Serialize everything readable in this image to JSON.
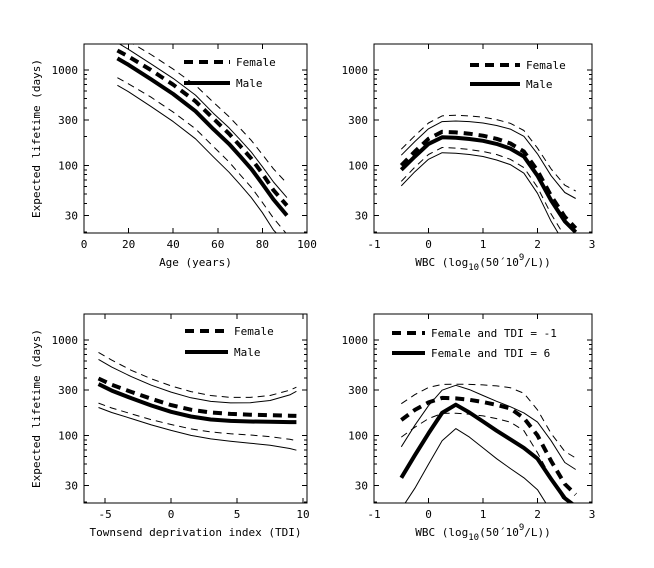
{
  "figure": {
    "background": "#ffffff",
    "line_color": "#000000",
    "ylabel": "Expected lifetime (days)",
    "grid": false,
    "legend_position": "top-inside, no frame"
  },
  "chart_data": [
    {
      "id": "age",
      "type": "line",
      "title": "",
      "xlabel": "Age (years)",
      "xlabel_parts": [
        {
          "t": "Age (years)"
        }
      ],
      "ylabel": "Expected lifetime (days)",
      "xlim": [
        0,
        100
      ],
      "xticks": [
        "0",
        "20",
        "40",
        "60",
        "80",
        "100"
      ],
      "xtick_values": [
        0,
        20,
        40,
        60,
        80,
        100
      ],
      "yscale": "log",
      "ylim": [
        19.6,
        1870
      ],
      "yticks": [
        "30",
        "100",
        "300",
        "1000"
      ],
      "ytick_values": [
        30,
        100,
        300,
        1000
      ],
      "legend": [
        {
          "label": "Female",
          "style": "thick-dashed"
        },
        {
          "label": "Male",
          "style": "thick-solid"
        }
      ],
      "x": [
        15,
        20,
        30,
        40,
        50,
        58,
        65,
        70,
        75,
        80,
        85,
        91
      ],
      "series": [
        {
          "name": "female",
          "style": "thick-dashed",
          "values": [
            1600,
            1380,
            1000,
            700,
            470,
            310,
            215,
            160,
            118,
            82,
            55,
            38
          ]
        },
        {
          "name": "male",
          "style": "thick-solid",
          "values": [
            1320,
            1130,
            800,
            560,
            370,
            240,
            168,
            125,
            92,
            64,
            44,
            30
          ]
        },
        {
          "name": "female-upper-ci",
          "style": "thin-dashed",
          "values": [
            2320,
            2000,
            1450,
            1020,
            690,
            460,
            325,
            245,
            183,
            130,
            92,
            65
          ]
        },
        {
          "name": "male-upper-ci",
          "style": "thin-solid",
          "values": [
            1930,
            1640,
            1160,
            815,
            545,
            352,
            248,
            186,
            138,
            97,
            67,
            46
          ]
        },
        {
          "name": "female-lower-ci",
          "style": "thin-dashed",
          "values": [
            830,
            715,
            520,
            362,
            242,
            158,
            109,
            80,
            59,
            41,
            28,
            19
          ]
        },
        {
          "name": "male-lower-ci",
          "style": "thin-solid",
          "values": [
            690,
            590,
            415,
            288,
            190,
            123,
            85,
            63,
            46,
            32,
            21,
            15
          ]
        }
      ]
    },
    {
      "id": "wbc-by-sex",
      "type": "line",
      "title": "",
      "xlabel": "WBC (log10(50´10^9/L))",
      "xlabel_parts": [
        {
          "t": "WBC (log"
        },
        {
          "t": "10",
          "s": "sub"
        },
        {
          "t": "(50´10"
        },
        {
          "t": "9",
          "s": "sup"
        },
        {
          "t": "/L))"
        }
      ],
      "ylabel": null,
      "xlim": [
        -1,
        3
      ],
      "xticks": [
        "-1",
        "0",
        "1",
        "2",
        "3"
      ],
      "xtick_values": [
        -1,
        0,
        1,
        2,
        3
      ],
      "yscale": "log",
      "ylim": [
        19.6,
        1870
      ],
      "yticks": [
        "30",
        "100",
        "300",
        "1000"
      ],
      "ytick_values": [
        30,
        100,
        300,
        1000
      ],
      "legend": [
        {
          "label": "Female",
          "style": "thick-dashed"
        },
        {
          "label": "Male",
          "style": "thick-solid"
        }
      ],
      "x": [
        -0.5,
        -0.25,
        0,
        0.25,
        0.5,
        0.75,
        1,
        1.25,
        1.5,
        1.75,
        2,
        2.25,
        2.5,
        2.7
      ],
      "series": [
        {
          "name": "female",
          "style": "thick-dashed",
          "values": [
            100,
            140,
            190,
            225,
            222,
            215,
            205,
            190,
            170,
            140,
            88,
            48,
            29,
            22
          ]
        },
        {
          "name": "male",
          "style": "thick-solid",
          "values": [
            90,
            124,
            168,
            197,
            195,
            189,
            181,
            168,
            150,
            124,
            78,
            43,
            26,
            20
          ]
        },
        {
          "name": "female-upper-ci",
          "style": "thin-dashed",
          "values": [
            148,
            205,
            278,
            330,
            336,
            330,
            320,
            302,
            276,
            232,
            152,
            92,
            62,
            54
          ]
        },
        {
          "name": "male-upper-ci",
          "style": "thin-solid",
          "values": [
            128,
            178,
            242,
            288,
            292,
            288,
            278,
            262,
            240,
            202,
            132,
            78,
            52,
            45
          ]
        },
        {
          "name": "female-lower-ci",
          "style": "thin-dashed",
          "values": [
            68,
            96,
            130,
            154,
            152,
            147,
            140,
            130,
            116,
            95,
            59,
            31,
            18,
            null
          ]
        },
        {
          "name": "male-lower-ci",
          "style": "thin-solid",
          "values": [
            61,
            86,
            116,
            136,
            134,
            130,
            124,
            114,
            102,
            83,
            51,
            26,
            15,
            null
          ]
        }
      ]
    },
    {
      "id": "tdi",
      "type": "line",
      "title": "",
      "xlabel": "Townsend deprivation index (TDI)",
      "xlabel_parts": [
        {
          "t": "Townsend deprivation index (TDI)"
        }
      ],
      "ylabel": "Expected lifetime (days)",
      "xlim": [
        -6.6,
        10.3
      ],
      "xticks": [
        "-5",
        "0",
        "5",
        "10"
      ],
      "xtick_values": [
        -5,
        0,
        5,
        10
      ],
      "yscale": "log",
      "ylim": [
        19.6,
        1870
      ],
      "yticks": [
        "30",
        "100",
        "300",
        "1000"
      ],
      "ytick_values": [
        30,
        100,
        300,
        1000
      ],
      "legend": [
        {
          "label": "Female",
          "style": "thick-dashed"
        },
        {
          "label": "Male",
          "style": "thick-solid"
        }
      ],
      "x": [
        -5.5,
        -4.5,
        -3,
        -1.5,
        0,
        1.5,
        3,
        4.5,
        6,
        7.5,
        9,
        9.5
      ],
      "series": [
        {
          "name": "female",
          "style": "thick-dashed",
          "values": [
            395,
            340,
            285,
            242,
            208,
            186,
            174,
            168,
            165,
            163,
            161,
            160
          ]
        },
        {
          "name": "male",
          "style": "thick-solid",
          "values": [
            345,
            295,
            245,
            206,
            177,
            158,
            147,
            142,
            140,
            139,
            138,
            138
          ]
        },
        {
          "name": "female-upper-ci",
          "style": "thin-dashed",
          "values": [
            740,
            615,
            480,
            392,
            330,
            288,
            262,
            250,
            250,
            262,
            298,
            320
          ]
        },
        {
          "name": "male-upper-ci",
          "style": "thin-solid",
          "values": [
            625,
            520,
            412,
            336,
            284,
            248,
            227,
            219,
            220,
            232,
            266,
            290
          ]
        },
        {
          "name": "female-lower-ci",
          "style": "thin-dashed",
          "values": [
            218,
            194,
            168,
            146,
            130,
            117,
            109,
            104,
            101,
            97,
            91,
            88
          ]
        },
        {
          "name": "male-lower-ci",
          "style": "thin-solid",
          "values": [
            196,
            174,
            150,
            129,
            113,
            100,
            92,
            87,
            83,
            79,
            73,
            70
          ]
        }
      ]
    },
    {
      "id": "wbc-by-tdi",
      "type": "line",
      "title": "",
      "xlabel": "WBC (log10(50´10^9/L))",
      "xlabel_parts": [
        {
          "t": "WBC (log"
        },
        {
          "t": "10",
          "s": "sub"
        },
        {
          "t": "(50´10"
        },
        {
          "t": "9",
          "s": "sup"
        },
        {
          "t": "/L))"
        }
      ],
      "ylabel": null,
      "xlim": [
        -1,
        3
      ],
      "xticks": [
        "-1",
        "0",
        "1",
        "2",
        "3"
      ],
      "xtick_values": [
        -1,
        0,
        1,
        2,
        3
      ],
      "yscale": "log",
      "ylim": [
        19.6,
        1870
      ],
      "yticks": [
        "30",
        "100",
        "300",
        "1000"
      ],
      "ytick_values": [
        30,
        100,
        300,
        1000
      ],
      "legend": [
        {
          "label": "Female and TDI = -1",
          "style": "thick-dashed"
        },
        {
          "label": "Female and TDI = 6",
          "style": "thick-solid"
        }
      ],
      "x": [
        -0.5,
        -0.25,
        0,
        0.25,
        0.5,
        0.75,
        1,
        1.25,
        1.5,
        1.75,
        2,
        2.25,
        2.5,
        2.7
      ],
      "series": [
        {
          "name": "female-tdi-minus1",
          "style": "thick-dashed",
          "values": [
            145,
            185,
            222,
            247,
            244,
            236,
            224,
            209,
            192,
            152,
            100,
            54,
            31,
            24
          ]
        },
        {
          "name": "female-tdi-6",
          "style": "thick-solid",
          "values": [
            36,
            62,
            105,
            172,
            210,
            174,
            140,
            112,
            91,
            74,
            57,
            35,
            22,
            18
          ]
        },
        {
          "name": "tdi-minus1-upper-ci",
          "style": "thin-dashed",
          "values": [
            215,
            268,
            318,
            342,
            344,
            342,
            338,
            330,
            316,
            276,
            185,
            105,
            68,
            58
          ]
        },
        {
          "name": "tdi-6-upper-ci",
          "style": "thin-solid",
          "values": [
            76,
            128,
            205,
            298,
            335,
            302,
            262,
            228,
            200,
            172,
            138,
            88,
            52,
            44
          ]
        },
        {
          "name": "tdi-minus1-lower-ci",
          "style": "thin-dashed",
          "values": [
            96,
            122,
            150,
            170,
            171,
            167,
            160,
            150,
            138,
            112,
            66,
            36,
            20,
            null
          ]
        },
        {
          "name": "tdi-6-lower-ci",
          "style": "thin-solid",
          "values": [
            17,
            28,
            50,
            88,
            118,
            96,
            74,
            57,
            45,
            36,
            27,
            16,
            null,
            null
          ]
        }
      ]
    }
  ]
}
